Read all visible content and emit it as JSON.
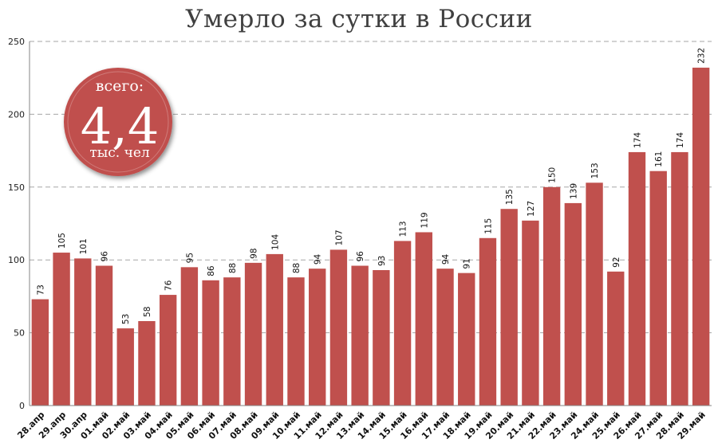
{
  "chart_data": {
    "type": "bar",
    "title": "Умерло за сутки в России",
    "xlabel": "",
    "ylabel": "",
    "ylim": [
      0,
      250
    ],
    "yticks": [
      0,
      50,
      100,
      150,
      200,
      250
    ],
    "grid": true,
    "bar_color": "#c0504d",
    "categories": [
      "28.апр",
      "29.апр",
      "30.апр",
      "01.май",
      "02.май",
      "03.май",
      "04.май",
      "05.май",
      "06.май",
      "07.май",
      "08.май",
      "09.май",
      "10.май",
      "11.май",
      "12.май",
      "13.май",
      "14.май",
      "15.май",
      "16.май",
      "17.май",
      "18.май",
      "19.май",
      "20.май",
      "21.май",
      "22.май",
      "23.май",
      "24.май",
      "25.май",
      "26.май",
      "27.май",
      "28.май",
      "29.май"
    ],
    "values": [
      73,
      105,
      101,
      96,
      53,
      58,
      76,
      95,
      86,
      88,
      98,
      104,
      88,
      94,
      107,
      96,
      93,
      113,
      119,
      94,
      91,
      115,
      135,
      127,
      150,
      139,
      153,
      92,
      174,
      161,
      174,
      232
    ],
    "annotation": {
      "line1": "всего:",
      "value": "4,4",
      "line2": "тыс. чел",
      "color": "#c0504d"
    }
  }
}
